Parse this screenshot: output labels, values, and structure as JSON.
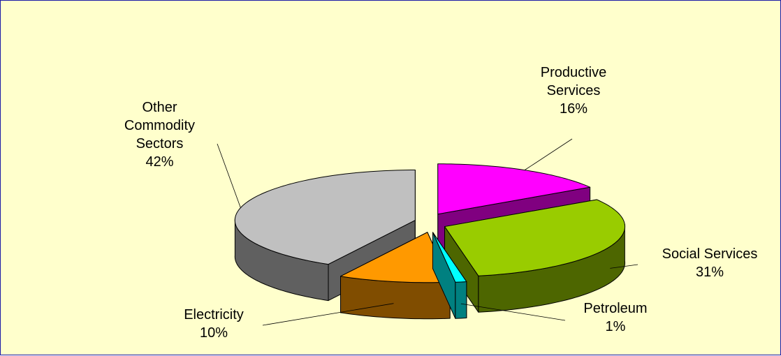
{
  "chart_data": {
    "type": "pie",
    "categories": [
      "Productive Services",
      "Social Services",
      "Petroleum",
      "Electricity",
      "Other Commodity Sectors"
    ],
    "values": [
      16,
      31,
      1,
      10,
      42
    ],
    "value_labels": [
      "16%",
      "31%",
      "1%",
      "10%",
      "42%"
    ],
    "colors": [
      "#ff00ff",
      "#99cc00",
      "#00ffff",
      "#ff9900",
      "#c0c0c0"
    ]
  }
}
